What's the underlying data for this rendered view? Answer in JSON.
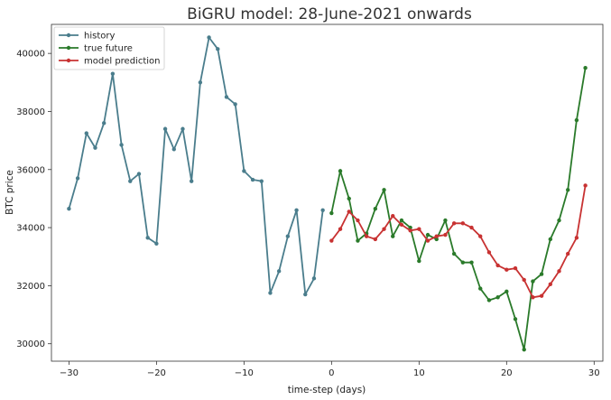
{
  "chart_data": {
    "type": "line",
    "title": "BiGRU model: 28-June-2021 onwards",
    "xlabel": "time-step (days)",
    "ylabel": "BTC price",
    "xlim": [
      -32,
      31
    ],
    "ylim": [
      29400,
      41000
    ],
    "x_ticks": [
      -30,
      -20,
      -10,
      0,
      10,
      20,
      30
    ],
    "x_tick_labels": [
      "−30",
      "−20",
      "−10",
      "0",
      "10",
      "20",
      "30"
    ],
    "y_ticks": [
      30000,
      32000,
      34000,
      36000,
      38000,
      40000
    ],
    "y_tick_labels": [
      "30000",
      "32000",
      "34000",
      "36000",
      "38000",
      "40000"
    ],
    "grid": false,
    "legend_position": "top-left",
    "series": [
      {
        "name": "history",
        "color": "#4a7d8c",
        "x": [
          -30,
          -29,
          -28,
          -27,
          -26,
          -25,
          -24,
          -23,
          -22,
          -21,
          -20,
          -19,
          -18,
          -17,
          -16,
          -15,
          -14,
          -13,
          -12,
          -11,
          -10,
          -9,
          -8,
          -7,
          -6,
          -5,
          -4,
          -3,
          -2,
          -1
        ],
        "values": [
          34650,
          35700,
          37250,
          36750,
          37600,
          39300,
          36850,
          35600,
          35850,
          33650,
          33450,
          37400,
          36700,
          37400,
          35600,
          39000,
          40550,
          40150,
          38500,
          38250,
          35950,
          35650,
          35600,
          31750,
          32500,
          33700,
          34600,
          31700,
          32250,
          34600
        ]
      },
      {
        "name": "true future",
        "color": "#2a7a2a",
        "x": [
          0,
          1,
          2,
          3,
          4,
          5,
          6,
          7,
          8,
          9,
          10,
          11,
          12,
          13,
          14,
          15,
          16,
          17,
          18,
          19,
          20,
          21,
          22,
          23,
          24,
          25,
          26,
          27,
          28,
          29
        ],
        "values": [
          34500,
          35950,
          35000,
          33550,
          33800,
          34650,
          35300,
          33700,
          34250,
          34000,
          32850,
          33750,
          33600,
          34250,
          33100,
          32800,
          32800,
          31900,
          31500,
          31600,
          31800,
          30850,
          29800,
          32150,
          32400,
          33600,
          34250,
          35300,
          37700,
          39500
        ]
      },
      {
        "name": "model prediction",
        "color": "#c83232",
        "x": [
          0,
          1,
          2,
          3,
          4,
          5,
          6,
          7,
          8,
          9,
          10,
          11,
          12,
          13,
          14,
          15,
          16,
          17,
          18,
          19,
          20,
          21,
          22,
          23,
          24,
          25,
          26,
          27,
          28,
          29
        ],
        "values": [
          33550,
          33950,
          34550,
          34250,
          33700,
          33600,
          33950,
          34400,
          34100,
          33900,
          33950,
          33550,
          33700,
          33750,
          34150,
          34150,
          34000,
          33700,
          33150,
          32700,
          32550,
          32600,
          32200,
          31600,
          31650,
          32050,
          32500,
          33100,
          33650,
          35450
        ]
      }
    ]
  }
}
